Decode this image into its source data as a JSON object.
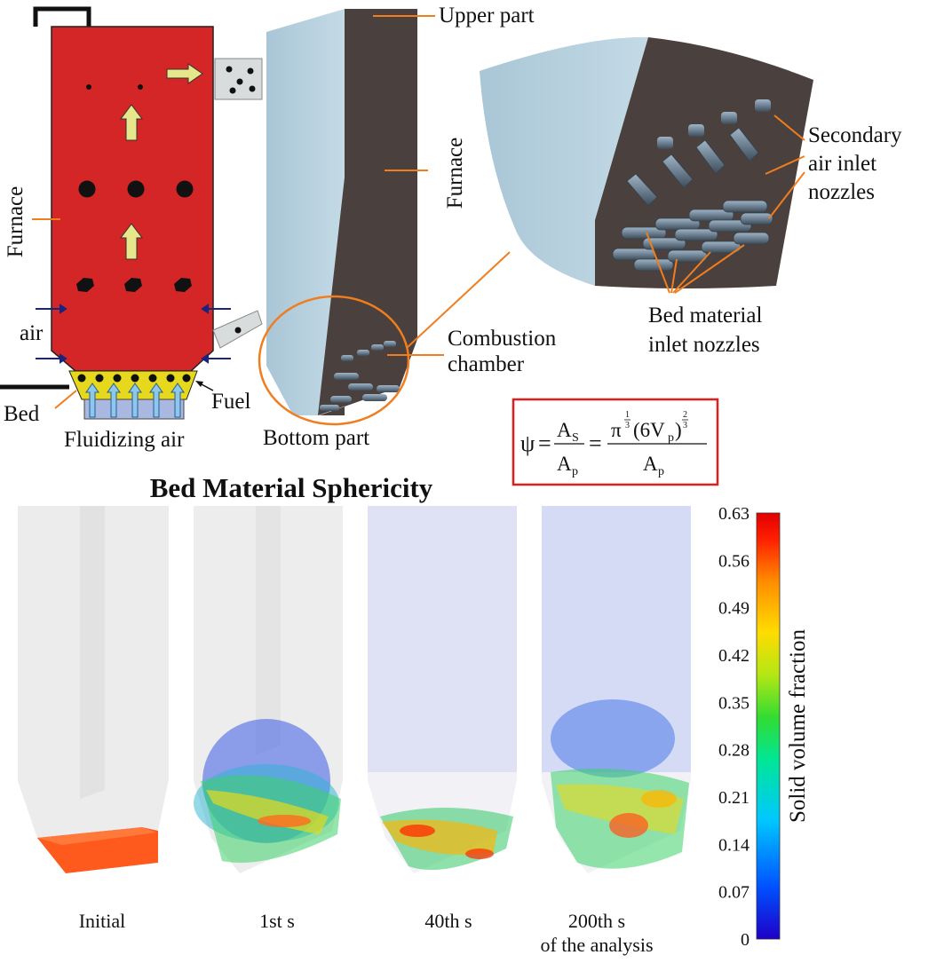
{
  "schematic": {
    "furnace": "Furnace",
    "air": "air",
    "bed": "Bed",
    "fuel": "Fuel",
    "fluidizing_air": "Fluidizing air"
  },
  "model3d": {
    "upper_part": "Upper part",
    "furnace": "Furnace",
    "bottom_part": "Bottom part",
    "combustion_line1": "Combustion",
    "combustion_line2": "chamber"
  },
  "zoom": {
    "secondary_line1": "Secondary",
    "secondary_line2": "air inlet",
    "secondary_line3": "nozzles",
    "bed_line1": "Bed material",
    "bed_line2": "inlet nozzles"
  },
  "formula": {
    "psi": "ψ",
    "eq": "=",
    "A": "A",
    "s_sub": "S",
    "p_sub": "p",
    "pi": "π",
    "one": "1",
    "two": "2",
    "three": "3",
    "six_v": "(6V",
    "close": ")"
  },
  "sim": {
    "title": "Bed Material Sphericity",
    "panels": [
      "Initial",
      "1st s",
      "40th s",
      "200th s"
    ],
    "panel_note": "of the analysis",
    "colorbar_label": "Solid volume fraction",
    "colorbar_ticks": [
      "0.63",
      "0.56",
      "0.49",
      "0.42",
      "0.35",
      "0.28",
      "0.21",
      "0.14",
      "0.07",
      "0"
    ],
    "colormap": [
      "#1e00c8",
      "#0050ff",
      "#00c8ff",
      "#00e696",
      "#32dc32",
      "#b4e614",
      "#ffdc00",
      "#ff8c00",
      "#ff1e00",
      "#e10000"
    ]
  },
  "colors": {
    "furnace_red": "#d42626",
    "bed_yellow": "#e6d81c",
    "arrow_yellow": "#e6e68a",
    "orange_leader": "#f07d1e",
    "model_light": "#b9d3e0",
    "model_dark": "#4a403e",
    "formula_border": "#e01e1e"
  }
}
